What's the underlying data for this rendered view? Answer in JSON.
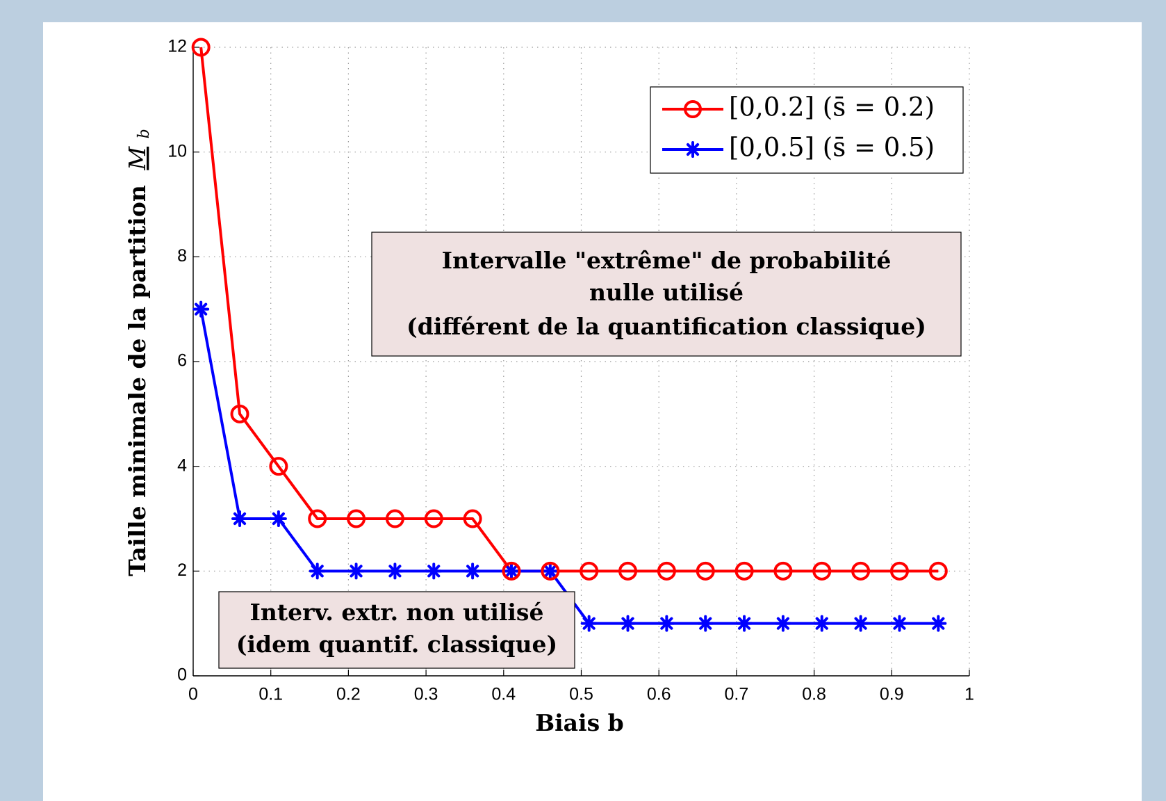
{
  "chart_data": {
    "type": "line",
    "xlabel": "Biais b",
    "ylabel": "Taille minimale de la partition",
    "ylabel_symbol": "M",
    "ylabel_subscript": "b",
    "xlim": [
      0,
      1
    ],
    "ylim": [
      0,
      12
    ],
    "x_ticks": [
      "0",
      "0.1",
      "0.2",
      "0.3",
      "0.4",
      "0.5",
      "0.6",
      "0.7",
      "0.8",
      "0.9",
      "1"
    ],
    "y_ticks": [
      "0",
      "2",
      "4",
      "6",
      "8",
      "10",
      "12"
    ],
    "grid": true,
    "legend_position": "top-right",
    "x": [
      0.01,
      0.06,
      0.11,
      0.16,
      0.21,
      0.26,
      0.31,
      0.36,
      0.41,
      0.46,
      0.51,
      0.56,
      0.61,
      0.66,
      0.71,
      0.76,
      0.81,
      0.86,
      0.91,
      0.96
    ],
    "series": [
      {
        "name": "[0,0.2]  (s̄ = 0.2)",
        "color": "#ff0000",
        "marker": "circle",
        "values": [
          12,
          5,
          4,
          3,
          3,
          3,
          3,
          3,
          2,
          2,
          2,
          2,
          2,
          2,
          2,
          2,
          2,
          2,
          2,
          2
        ]
      },
      {
        "name": "[0,0.5]  (s̄ = 0.5)",
        "color": "#0000ff",
        "marker": "asterisk",
        "values": [
          7,
          3,
          3,
          2,
          2,
          2,
          2,
          2,
          2,
          2,
          1,
          1,
          1,
          1,
          1,
          1,
          1,
          1,
          1,
          1
        ]
      }
    ],
    "annotations": [
      {
        "lines": [
          "Intervalle \"extrême\" de probabilité",
          "nulle utilisé",
          "(différent de la quantification classique)"
        ],
        "background": "#efe1e1"
      },
      {
        "lines": [
          "Interv. extr. non utilisé",
          "(idem quantif. classique)"
        ],
        "background": "#efe1e1"
      }
    ]
  }
}
